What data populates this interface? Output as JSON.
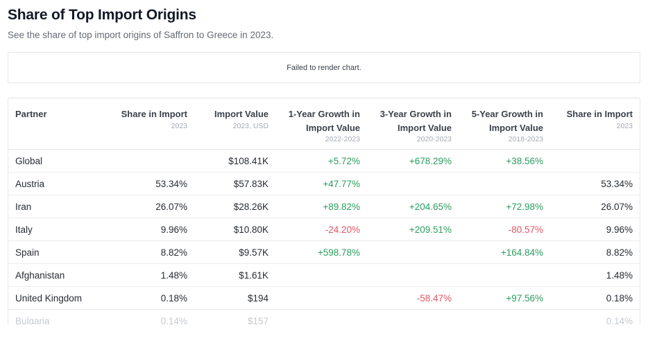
{
  "page": {
    "title": "Share of Top Import Origins",
    "subtitle": "See the share of top import origins of Saffron to Greece in 2023.",
    "chart_error_message": "Failed to render chart."
  },
  "colors": {
    "positive": "#2a9d5f",
    "negative": "#e25563",
    "muted_row_text": "#c5c9d0",
    "title_text": "#111827",
    "border": "#e4e6ea"
  },
  "table": {
    "columns": [
      {
        "label": "Partner",
        "sublabel": ""
      },
      {
        "label": "Share in Import",
        "sublabel": "2023"
      },
      {
        "label": "Import Value",
        "sublabel": "2023, USD"
      },
      {
        "label": "1-Year Growth in Import Value",
        "sublabel": "2022-2023"
      },
      {
        "label": "3-Year Growth in Import Value",
        "sublabel": "2020-2023"
      },
      {
        "label": "5-Year Growth in Import Value",
        "sublabel": "2018-2023"
      },
      {
        "label": "Share in Import",
        "sublabel": "2023"
      }
    ],
    "rows": [
      {
        "partner": "Global",
        "share": "",
        "value": "$108.41K",
        "g1": "+5.72%",
        "g3": "+678.29%",
        "g5": "+38.56%",
        "share2": "",
        "muted": false
      },
      {
        "partner": "Austria",
        "share": "53.34%",
        "value": "$57.83K",
        "g1": "+47.77%",
        "g3": "",
        "g5": "",
        "share2": "53.34%",
        "muted": false
      },
      {
        "partner": "Iran",
        "share": "26.07%",
        "value": "$28.26K",
        "g1": "+89.82%",
        "g3": "+204.65%",
        "g5": "+72.98%",
        "share2": "26.07%",
        "muted": false
      },
      {
        "partner": "Italy",
        "share": "9.96%",
        "value": "$10.80K",
        "g1": "-24.20%",
        "g3": "+209.51%",
        "g5": "-80.57%",
        "share2": "9.96%",
        "muted": false
      },
      {
        "partner": "Spain",
        "share": "8.82%",
        "value": "$9.57K",
        "g1": "+598.78%",
        "g3": "",
        "g5": "+164.84%",
        "share2": "8.82%",
        "muted": false
      },
      {
        "partner": "Afghanistan",
        "share": "1.48%",
        "value": "$1.61K",
        "g1": "",
        "g3": "",
        "g5": "",
        "share2": "1.48%",
        "muted": false
      },
      {
        "partner": "United Kingdom",
        "share": "0.18%",
        "value": "$194",
        "g1": "",
        "g3": "-58.47%",
        "g5": "+97.56%",
        "share2": "0.18%",
        "muted": false
      },
      {
        "partner": "Bulgaria",
        "share": "0.14%",
        "value": "$157",
        "g1": "",
        "g3": "",
        "g5": "",
        "share2": "0.14%",
        "muted": true
      }
    ]
  }
}
